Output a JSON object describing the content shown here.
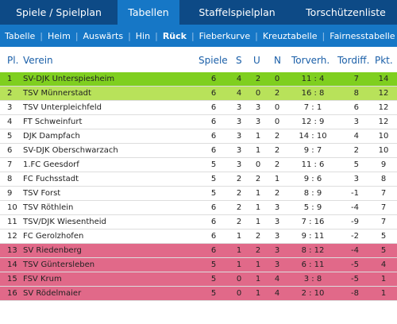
{
  "tabs": [
    {
      "label": "Spiele / Spielplan",
      "active": false
    },
    {
      "label": "Tabellen",
      "active": true
    },
    {
      "label": "Staffelspielplan",
      "active": false
    },
    {
      "label": "Torschützenliste",
      "active": false
    }
  ],
  "subtabs": [
    {
      "label": "Tabelle",
      "active": false
    },
    {
      "label": "Heim",
      "active": false
    },
    {
      "label": "Auswärts",
      "active": false
    },
    {
      "label": "Hin",
      "active": false
    },
    {
      "label": "Rück",
      "active": true
    },
    {
      "label": "Fieberkurve",
      "active": false
    },
    {
      "label": "Kreuztabelle",
      "active": false
    },
    {
      "label": "Fairnesstabelle",
      "active": false
    }
  ],
  "table": {
    "headers": {
      "pl": "Pl.",
      "verein": "Verein",
      "spiele": "Spiele",
      "s": "S",
      "u": "U",
      "n": "N",
      "torverh": "Torverh.",
      "tordiff": "Tordiff.",
      "pkt": "Pkt."
    },
    "rows": [
      {
        "pl": "1",
        "verein": "SV-DJK Unterspiesheim",
        "spiele": "6",
        "s": "4",
        "u": "2",
        "n": "0",
        "torverh": "11 : 4",
        "tordiff": "7",
        "pkt": "14",
        "highlight": "green1"
      },
      {
        "pl": "2",
        "verein": "TSV Münnerstadt",
        "spiele": "6",
        "s": "4",
        "u": "0",
        "n": "2",
        "torverh": "16 : 8",
        "tordiff": "8",
        "pkt": "12",
        "highlight": "green2"
      },
      {
        "pl": "3",
        "verein": "TSV Unterpleichfeld",
        "spiele": "6",
        "s": "3",
        "u": "3",
        "n": "0",
        "torverh": "7 : 1",
        "tordiff": "6",
        "pkt": "12",
        "highlight": ""
      },
      {
        "pl": "4",
        "verein": "FT Schweinfurt",
        "spiele": "6",
        "s": "3",
        "u": "3",
        "n": "0",
        "torverh": "12 : 9",
        "tordiff": "3",
        "pkt": "12",
        "highlight": ""
      },
      {
        "pl": "5",
        "verein": "DJK Dampfach",
        "spiele": "6",
        "s": "3",
        "u": "1",
        "n": "2",
        "torverh": "14 : 10",
        "tordiff": "4",
        "pkt": "10",
        "highlight": ""
      },
      {
        "pl": "6",
        "verein": "SV-DJK Oberschwarzach",
        "spiele": "6",
        "s": "3",
        "u": "1",
        "n": "2",
        "torverh": "9 : 7",
        "tordiff": "2",
        "pkt": "10",
        "highlight": ""
      },
      {
        "pl": "7",
        "verein": "1.FC Geesdorf",
        "spiele": "5",
        "s": "3",
        "u": "0",
        "n": "2",
        "torverh": "11 : 6",
        "tordiff": "5",
        "pkt": "9",
        "highlight": ""
      },
      {
        "pl": "8",
        "verein": "FC Fuchsstadt",
        "spiele": "5",
        "s": "2",
        "u": "2",
        "n": "1",
        "torverh": "9 : 6",
        "tordiff": "3",
        "pkt": "8",
        "highlight": ""
      },
      {
        "pl": "9",
        "verein": "TSV Forst",
        "spiele": "5",
        "s": "2",
        "u": "1",
        "n": "2",
        "torverh": "8 : 9",
        "tordiff": "-1",
        "pkt": "7",
        "highlight": ""
      },
      {
        "pl": "10",
        "verein": "TSV Röthlein",
        "spiele": "6",
        "s": "2",
        "u": "1",
        "n": "3",
        "torverh": "5 : 9",
        "tordiff": "-4",
        "pkt": "7",
        "highlight": ""
      },
      {
        "pl": "11",
        "verein": "TSV/DJK Wiesentheid",
        "spiele": "6",
        "s": "2",
        "u": "1",
        "n": "3",
        "torverh": "7 : 16",
        "tordiff": "-9",
        "pkt": "7",
        "highlight": ""
      },
      {
        "pl": "12",
        "verein": "FC Gerolzhofen",
        "spiele": "6",
        "s": "1",
        "u": "2",
        "n": "3",
        "torverh": "9 : 11",
        "tordiff": "-2",
        "pkt": "5",
        "highlight": ""
      },
      {
        "pl": "13",
        "verein": "SV Riedenberg",
        "spiele": "6",
        "s": "1",
        "u": "2",
        "n": "3",
        "torverh": "8 : 12",
        "tordiff": "-4",
        "pkt": "5",
        "highlight": "red"
      },
      {
        "pl": "14",
        "verein": "TSV Güntersleben",
        "spiele": "5",
        "s": "1",
        "u": "1",
        "n": "3",
        "torverh": "6 : 11",
        "tordiff": "-5",
        "pkt": "4",
        "highlight": "red"
      },
      {
        "pl": "15",
        "verein": "FSV Krum",
        "spiele": "5",
        "s": "0",
        "u": "1",
        "n": "4",
        "torverh": "3 : 8",
        "tordiff": "-5",
        "pkt": "1",
        "highlight": "red"
      },
      {
        "pl": "16",
        "verein": "SV Rödelmaier",
        "spiele": "5",
        "s": "0",
        "u": "1",
        "n": "4",
        "torverh": "2 : 10",
        "tordiff": "-8",
        "pkt": "1",
        "highlight": "red"
      }
    ]
  },
  "colors": {
    "nav_dark": "#0d4a86",
    "nav_active": "#1677c6",
    "header_text": "#1a5fa8",
    "promotion": "#7fcf1f",
    "promotion_relegation": "#b8e25a",
    "relegation": "#e16989"
  }
}
